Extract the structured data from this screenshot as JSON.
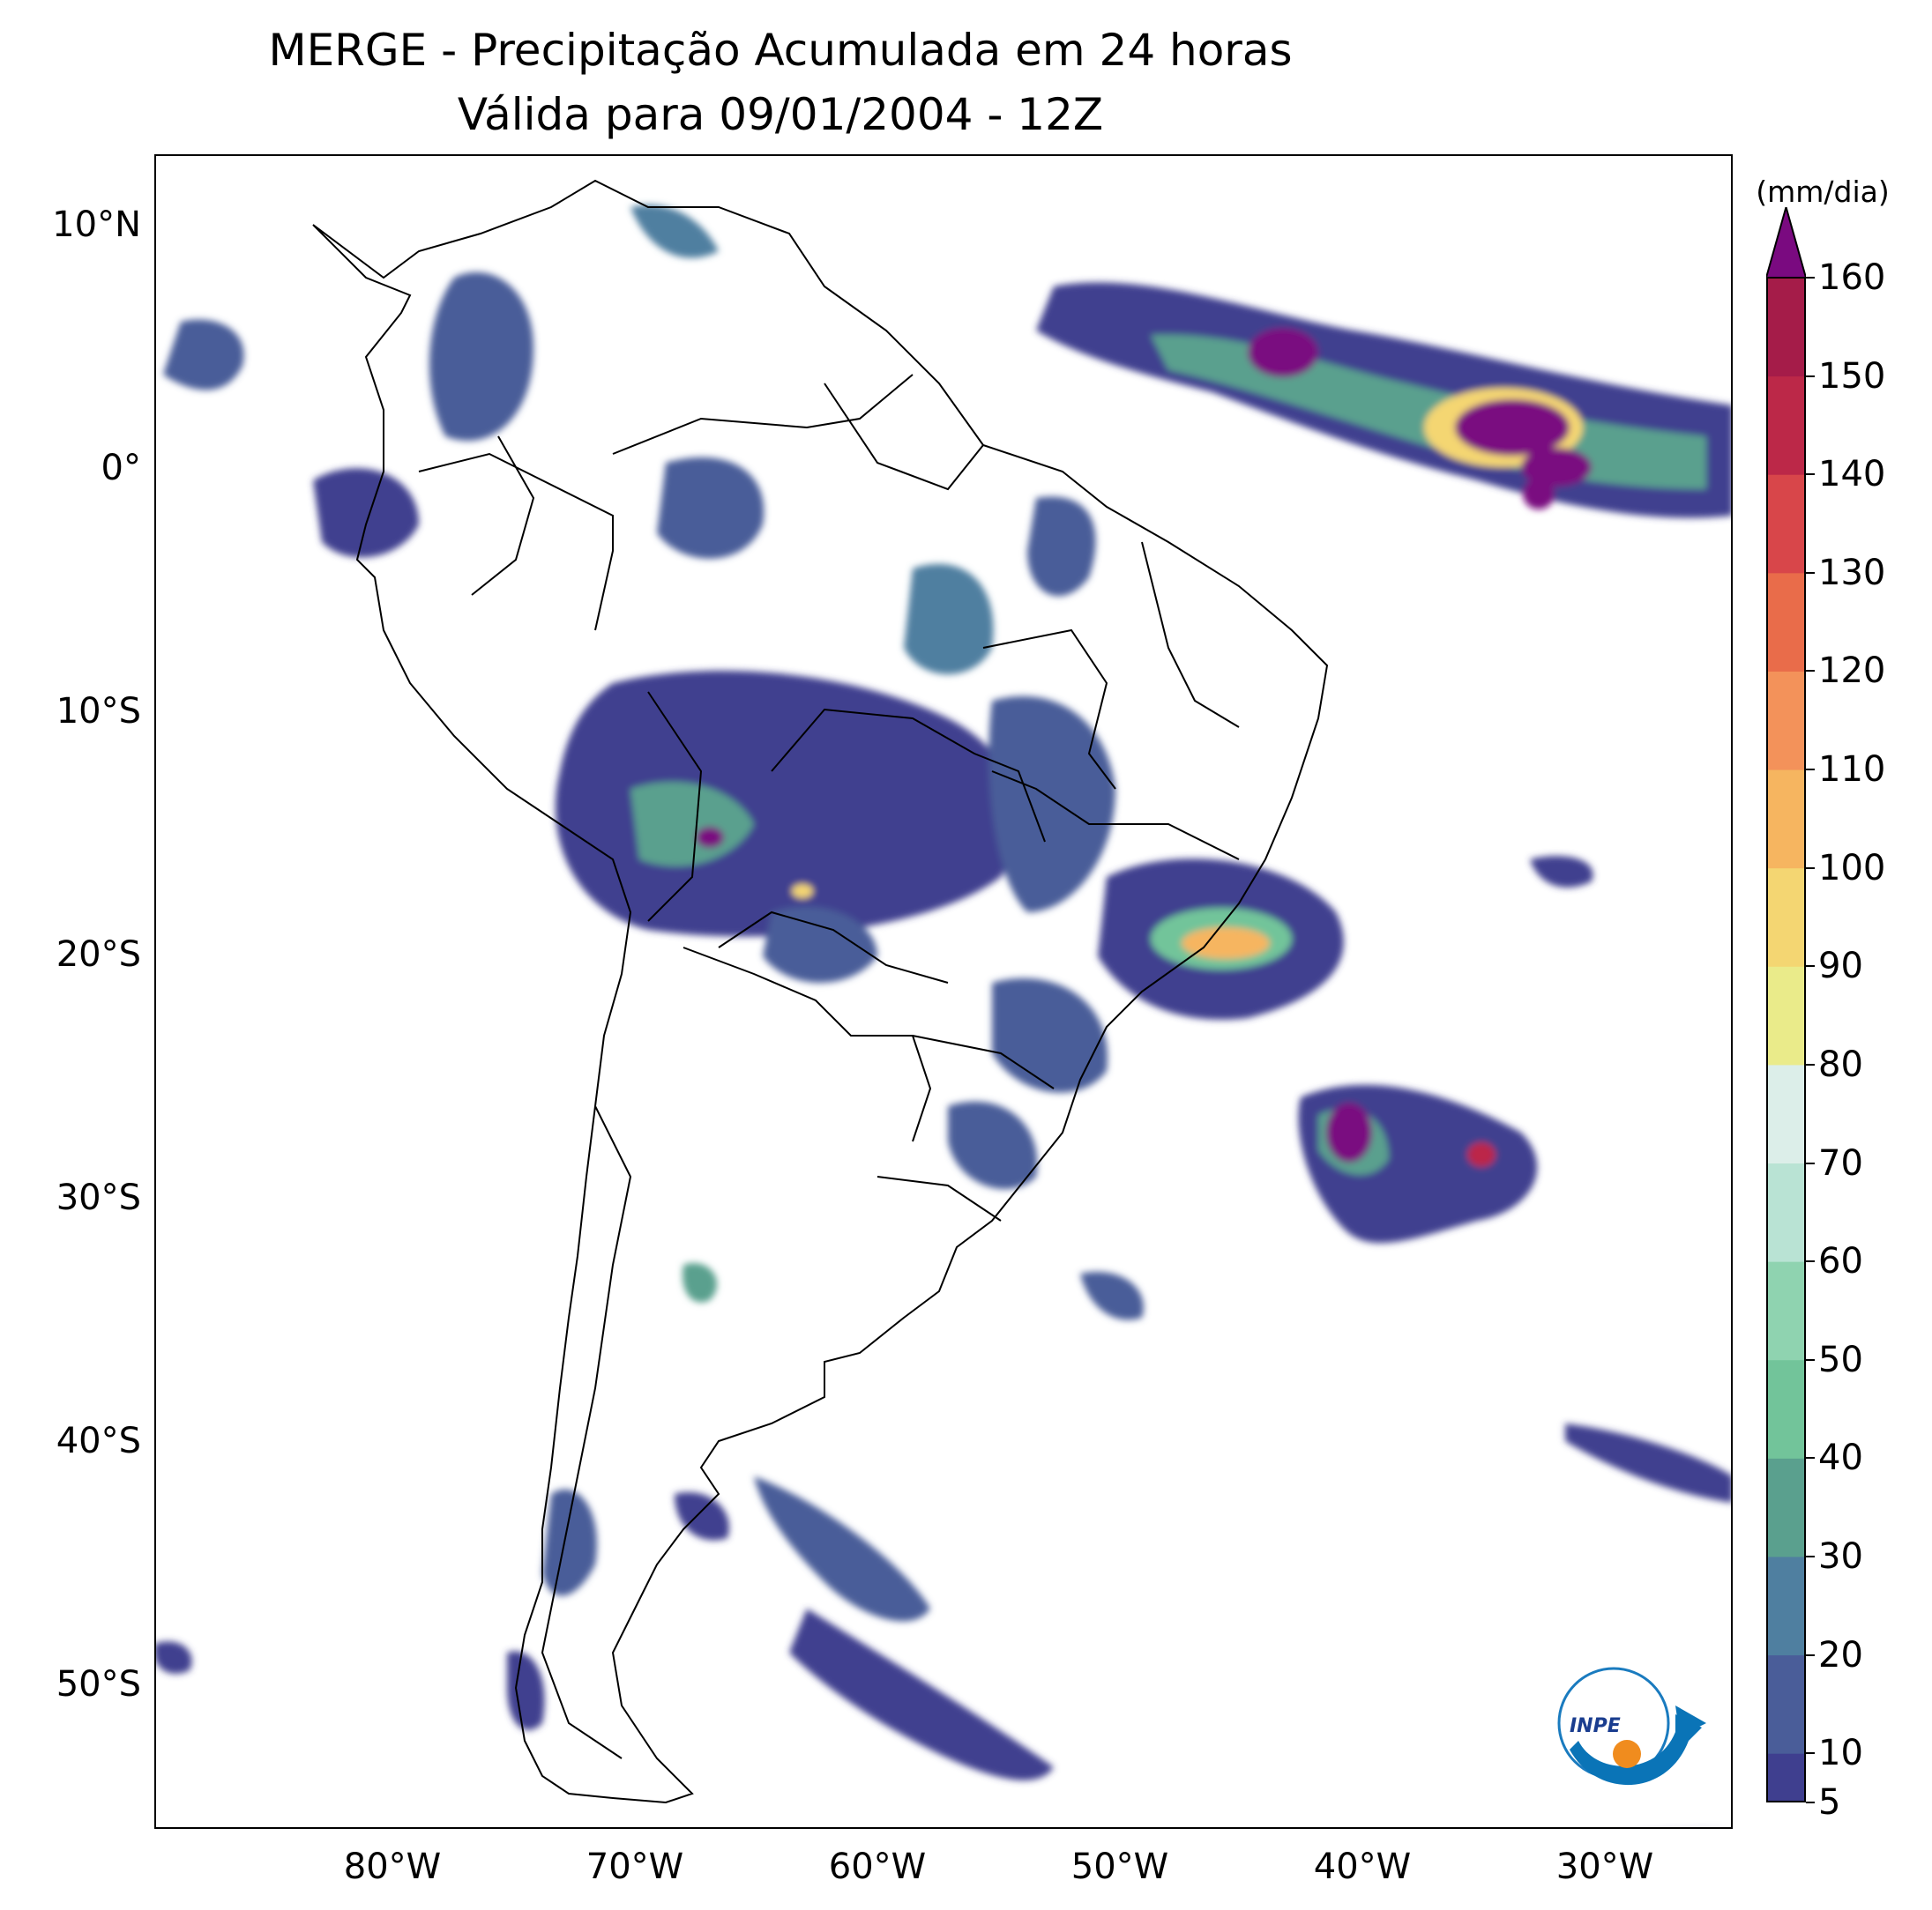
{
  "title": {
    "line1": "MERGE - Precipitação Acumulada em 24 horas",
    "line2": "Válida para 09/01/2004 - 12Z"
  },
  "map": {
    "region": "South America",
    "projection": "PlateCarree",
    "lon_range": [
      -90,
      -25
    ],
    "lat_range": [
      -56,
      13
    ],
    "lat_ticks": [
      "10°N",
      "0°",
      "10°S",
      "20°S",
      "30°S",
      "40°S",
      "50°S"
    ],
    "lon_ticks": [
      "80°W",
      "70°W",
      "60°W",
      "50°W",
      "40°W",
      "30°W"
    ],
    "features": [
      "coastlines",
      "country borders",
      "Brazilian state borders"
    ],
    "precip_areas": [
      {
        "name": "ITCZ Atlantic band",
        "max_mm": 160
      },
      {
        "name": "Central Brazil / Bolivia",
        "max_mm": 160
      },
      {
        "name": "Southeast Brazil (MG/RJ/SP)",
        "max_mm": 100
      },
      {
        "name": "South Atlantic off Brazil",
        "max_mm": 160
      },
      {
        "name": "Patagonia band",
        "max_mm": 20
      }
    ]
  },
  "colorbar": {
    "unit": "(mm/dia)",
    "labels": [
      "5",
      "10",
      "20",
      "30",
      "40",
      "50",
      "60",
      "70",
      "80",
      "90",
      "100",
      "110",
      "120",
      "130",
      "140",
      "150",
      "160"
    ],
    "levels": [
      5,
      10,
      20,
      30,
      40,
      50,
      60,
      70,
      80,
      90,
      100,
      110,
      120,
      130,
      140,
      150,
      160
    ],
    "extend": "max",
    "colors": [
      "#3f3f8f",
      "#4a5d99",
      "#4f7fa0",
      "#5aa08e",
      "#72c49a",
      "#8fd3b0",
      "#b9e3d4",
      "#dceee9",
      "#eaeb8a",
      "#f4d672",
      "#f6b560",
      "#f3925a",
      "#e96c4a",
      "#d8464a",
      "#bc2848",
      "#a51c49",
      "#7a0a80"
    ]
  },
  "logo": {
    "text": "INPE"
  }
}
